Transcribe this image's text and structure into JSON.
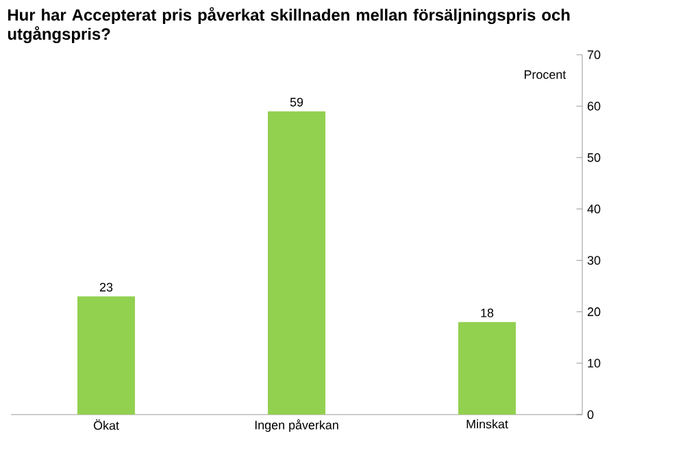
{
  "chart_data": {
    "type": "bar",
    "title": "Hur har Accepterat pris påverkat skillnaden mellan försäljningspris och utgångspris?",
    "ylabel": "Procent",
    "categories": [
      "Ökat",
      "Ingen påverkan",
      "Minskat"
    ],
    "values": [
      23,
      59,
      18
    ],
    "color": "#92d050",
    "data_labels": true,
    "grid": false,
    "ylim": [
      0,
      70
    ],
    "yticks": [
      0,
      10,
      20,
      30,
      40,
      50,
      60,
      70
    ]
  }
}
